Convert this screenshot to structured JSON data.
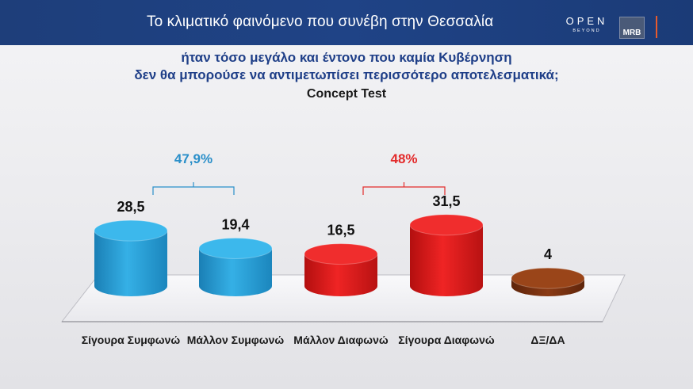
{
  "header": {
    "title": "Το κλιματικό φαινόμενο που συνέβη στην Θεσσαλία",
    "logo_open": "OPEN",
    "logo_open_sub": "BEYOND",
    "logo_mrb": "MRB"
  },
  "question": {
    "line1": "ήταν τόσο μεγάλο και έντονο που καμία Κυβέρνηση",
    "line2": "δεν θα μπορούσε να αντιμετωπίσει περισσότερο αποτελεσματικά;"
  },
  "colors": {
    "header_bg": "#1f4386",
    "agree_blue": "#29a3dc",
    "disagree_red": "#e41b1b",
    "dk_brown": "#8a3a14",
    "agree_label": "#2a8fc9",
    "disagree_label": "#e32b2b"
  },
  "chart_data": {
    "type": "bar",
    "title": "Concept Test",
    "categories": [
      "Σίγουρα Συμφωνώ",
      "Μάλλον Συμφωνώ",
      "Μάλλον Διαφωνώ",
      "Σίγουρα Διαφωνώ",
      "ΔΞ/ΔΑ"
    ],
    "values": [
      28.5,
      19.4,
      16.5,
      31.5,
      4
    ],
    "value_labels": [
      "28,5",
      "19,4",
      "16,5",
      "31,5",
      "4"
    ],
    "bar_colors": [
      "#29a3dc",
      "#29a3dc",
      "#e41b1b",
      "#e41b1b",
      "#8a3a14"
    ],
    "groups": [
      {
        "label": "47,9%",
        "color": "#2a8fc9",
        "from": 0,
        "to": 1
      },
      {
        "label": "48%",
        "color": "#e32b2b",
        "from": 2,
        "to": 3
      }
    ]
  }
}
